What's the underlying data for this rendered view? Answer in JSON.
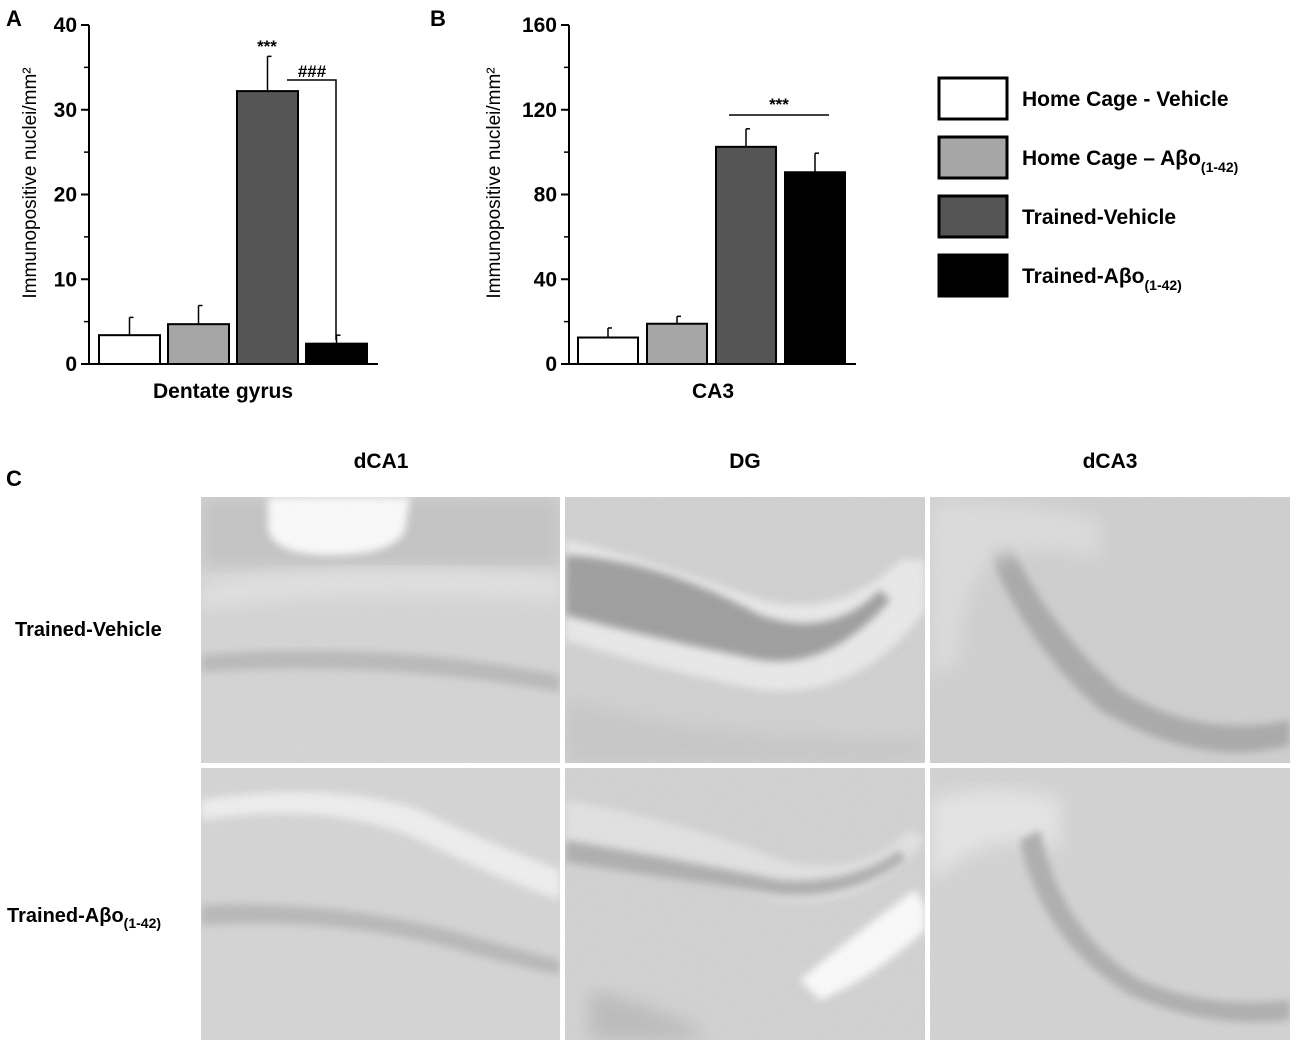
{
  "panel_labels": {
    "a": "A",
    "b": "B",
    "c": "C"
  },
  "legend": {
    "entries": [
      {
        "text": "Home Cage - Vehicle",
        "sub": "",
        "color": "#ffffff"
      },
      {
        "text": "Home Cage – Aβo",
        "sub": "(1-42)",
        "color": "#a6a6a6"
      },
      {
        "text": "Trained-Vehicle",
        "sub": "",
        "color": "#555555"
      },
      {
        "text": "Trained-Aβo",
        "sub": "(1-42)",
        "color": "#000000"
      }
    ]
  },
  "chart_data": [
    {
      "type": "bar",
      "panel": "A",
      "categories": [
        "Home Cage - Vehicle",
        "Home Cage – Aβo(1-42)",
        "Trained-Vehicle",
        "Trained-Aβo(1-42)"
      ],
      "values": [
        3.4,
        4.7,
        32.2,
        2.4
      ],
      "errors": [
        2.1,
        2.2,
        4.1,
        1.0
      ],
      "colors": [
        "#ffffff",
        "#a6a6a6",
        "#555555",
        "#000000"
      ],
      "xlabel": "Dentate gyrus",
      "ylabel": "Immunopositive nuclei/mm²",
      "ylim": [
        0,
        40
      ],
      "yticks": [
        "0",
        "10",
        "20",
        "30",
        "40"
      ],
      "annotations": {
        "stars": "***",
        "hashes": "###"
      }
    },
    {
      "type": "bar",
      "panel": "B",
      "categories": [
        "Home Cage - Vehicle",
        "Home Cage – Aβo(1-42)",
        "Trained-Vehicle",
        "Trained-Aβo(1-42)"
      ],
      "values": [
        12.5,
        19,
        102.5,
        90.5
      ],
      "errors": [
        4.5,
        3.5,
        8.5,
        9
      ],
      "colors": [
        "#ffffff",
        "#a6a6a6",
        "#555555",
        "#000000"
      ],
      "xlabel": "CA3",
      "ylabel": "Immunopositive nuclei/mm²",
      "ylim": [
        0,
        160
      ],
      "yticks": [
        "0",
        "40",
        "80",
        "120",
        "160"
      ],
      "annotations": {
        "stars": "***"
      }
    }
  ],
  "micrographs": {
    "columns": [
      "dCA1",
      "DG",
      "dCA3"
    ],
    "rows": [
      {
        "label": "Trained-Vehicle",
        "sub": ""
      },
      {
        "label": "Trained-Aβo",
        "sub": "(1-42)"
      }
    ]
  }
}
